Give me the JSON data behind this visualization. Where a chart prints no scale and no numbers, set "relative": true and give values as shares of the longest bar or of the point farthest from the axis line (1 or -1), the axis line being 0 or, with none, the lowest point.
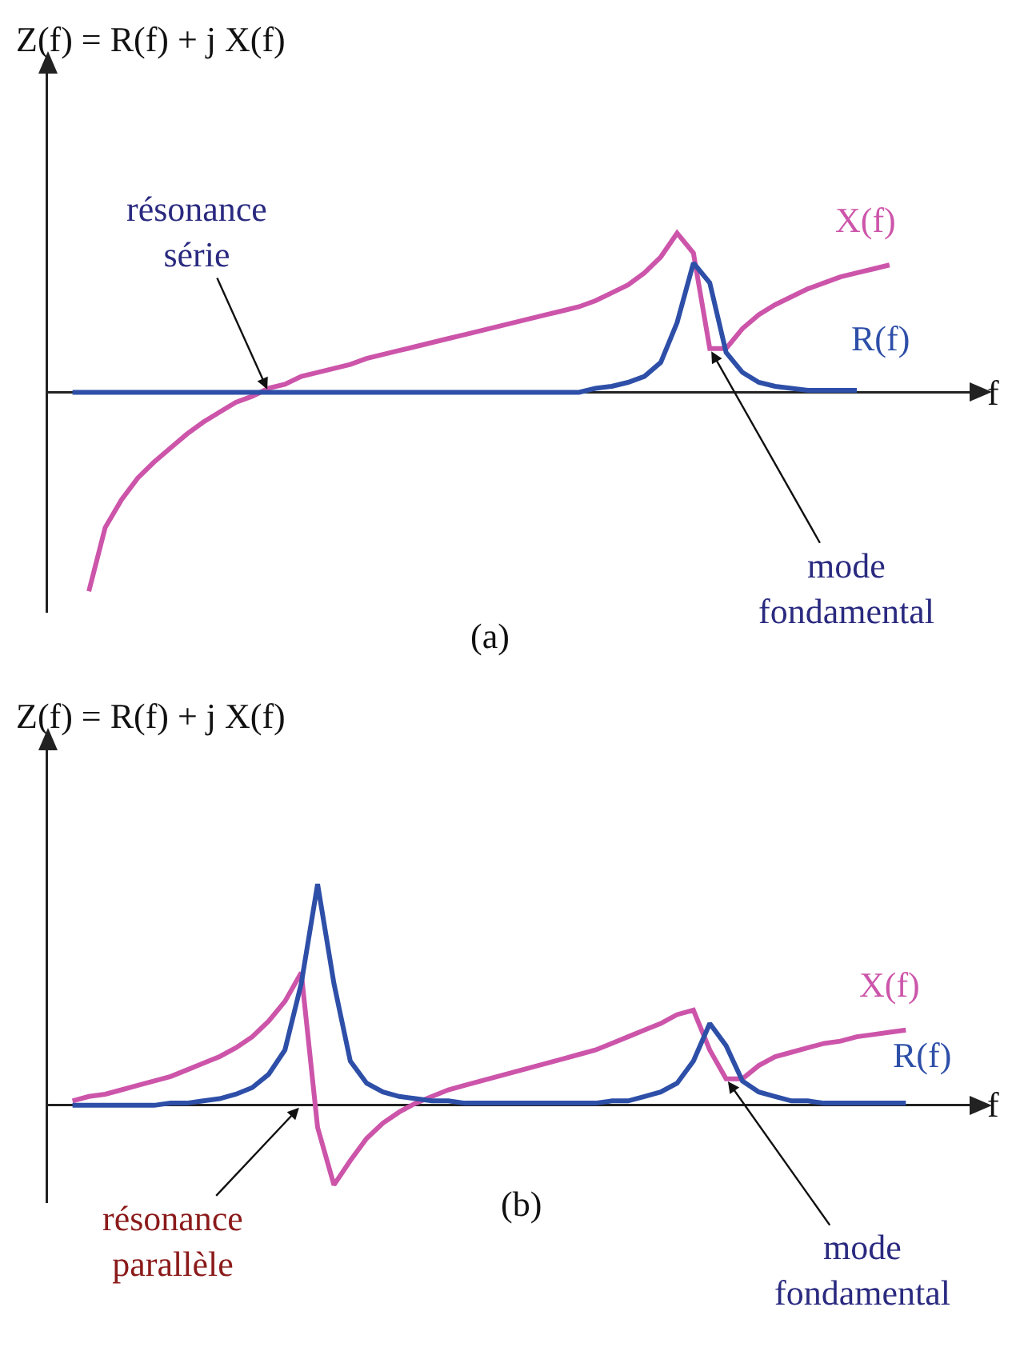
{
  "chart_data": [
    {
      "type": "line",
      "relative": true,
      "xlabel": "f",
      "ylabel": "Z(f) = R(f) + j X(f)",
      "annotations": [
        "résonance\nsérie",
        "mode\nfondamental",
        "(a)"
      ],
      "categories": [
        null,
        null,
        null,
        null,
        null,
        null,
        null,
        null,
        null,
        null,
        null,
        null,
        null,
        null,
        null,
        null,
        null,
        null,
        null,
        null,
        null,
        null,
        null,
        null,
        null,
        null,
        null,
        null,
        null,
        null,
        null,
        null,
        null,
        null,
        null,
        null,
        null,
        null,
        null,
        null,
        null,
        null,
        null,
        null,
        null,
        null,
        null,
        null,
        null,
        null,
        null,
        null
      ],
      "series": [
        {
          "name": "X(f)",
          "color": "#cc55aa",
          "values": [
            null,
            -1.0,
            -0.68,
            -0.54,
            -0.43,
            -0.35,
            -0.28,
            -0.21,
            -0.15,
            -0.1,
            -0.05,
            -0.02,
            0.02,
            0.04,
            0.08,
            0.1,
            0.12,
            0.14,
            0.17,
            0.19,
            0.21,
            0.23,
            0.25,
            0.27,
            0.29,
            0.31,
            0.33,
            0.35,
            0.37,
            0.39,
            0.41,
            0.43,
            0.46,
            0.5,
            0.54,
            0.6,
            0.68,
            0.8,
            0.7,
            0.22,
            0.22,
            0.32,
            0.39,
            0.44,
            0.48,
            0.52,
            0.55,
            0.58,
            0.6,
            0.62,
            0.64,
            null
          ]
        },
        {
          "name": "R(f)",
          "color": "#2e4fa8",
          "values": [
            0,
            0,
            0,
            0,
            0,
            0,
            0,
            0,
            0,
            0,
            0,
            0,
            0,
            0,
            0,
            0,
            0,
            0,
            0,
            0,
            0,
            0,
            0,
            0,
            0,
            0,
            0,
            0,
            0,
            0,
            0,
            0,
            0.02,
            0.03,
            0.05,
            0.08,
            0.15,
            0.35,
            0.65,
            0.55,
            0.2,
            0.1,
            0.05,
            0.03,
            0.02,
            0.01,
            0.01,
            0.01,
            0.01,
            null,
            null,
            null
          ]
        }
      ]
    },
    {
      "type": "line",
      "relative": true,
      "xlabel": "f",
      "ylabel": "Z(f) = R(f) + j X(f)",
      "annotations": [
        "résonance\nparallèle",
        "mode\nfondamental",
        "(b)"
      ],
      "categories": [
        null,
        null,
        null,
        null,
        null,
        null,
        null,
        null,
        null,
        null,
        null,
        null,
        null,
        null,
        null,
        null,
        null,
        null,
        null,
        null,
        null,
        null,
        null,
        null,
        null,
        null,
        null,
        null,
        null,
        null,
        null,
        null,
        null,
        null,
        null,
        null,
        null,
        null,
        null,
        null,
        null,
        null,
        null,
        null,
        null,
        null,
        null,
        null,
        null,
        null,
        null,
        null
      ],
      "series": [
        {
          "name": "X(f)",
          "color": "#cc55aa",
          "values": [
            0.02,
            0.04,
            0.05,
            0.07,
            0.09,
            0.11,
            0.13,
            0.16,
            0.19,
            0.22,
            0.26,
            0.31,
            0.38,
            0.47,
            0.6,
            -0.1,
            -0.36,
            -0.25,
            -0.15,
            -0.08,
            -0.03,
            0.01,
            0.04,
            0.07,
            0.09,
            0.11,
            0.13,
            0.15,
            0.17,
            0.19,
            0.21,
            0.23,
            0.25,
            0.28,
            0.31,
            0.34,
            0.37,
            0.41,
            0.43,
            0.25,
            0.12,
            0.12,
            0.18,
            0.22,
            0.24,
            0.26,
            0.28,
            0.29,
            0.31,
            0.32,
            0.33,
            0.34
          ]
        },
        {
          "name": "R(f)",
          "color": "#2e4fa8",
          "values": [
            0,
            0,
            0,
            0,
            0,
            0,
            0.01,
            0.01,
            0.02,
            0.03,
            0.05,
            0.08,
            0.14,
            0.25,
            0.55,
            1.0,
            0.55,
            0.2,
            0.1,
            0.06,
            0.04,
            0.03,
            0.02,
            0.02,
            0.01,
            0.01,
            0.01,
            0.01,
            0.01,
            0.01,
            0.01,
            0.01,
            0.01,
            0.02,
            0.02,
            0.04,
            0.06,
            0.1,
            0.2,
            0.37,
            0.27,
            0.11,
            0.06,
            0.04,
            0.02,
            0.02,
            0.01,
            0.01,
            0.01,
            0.01,
            0.01,
            0.01
          ]
        }
      ]
    }
  ]
}
